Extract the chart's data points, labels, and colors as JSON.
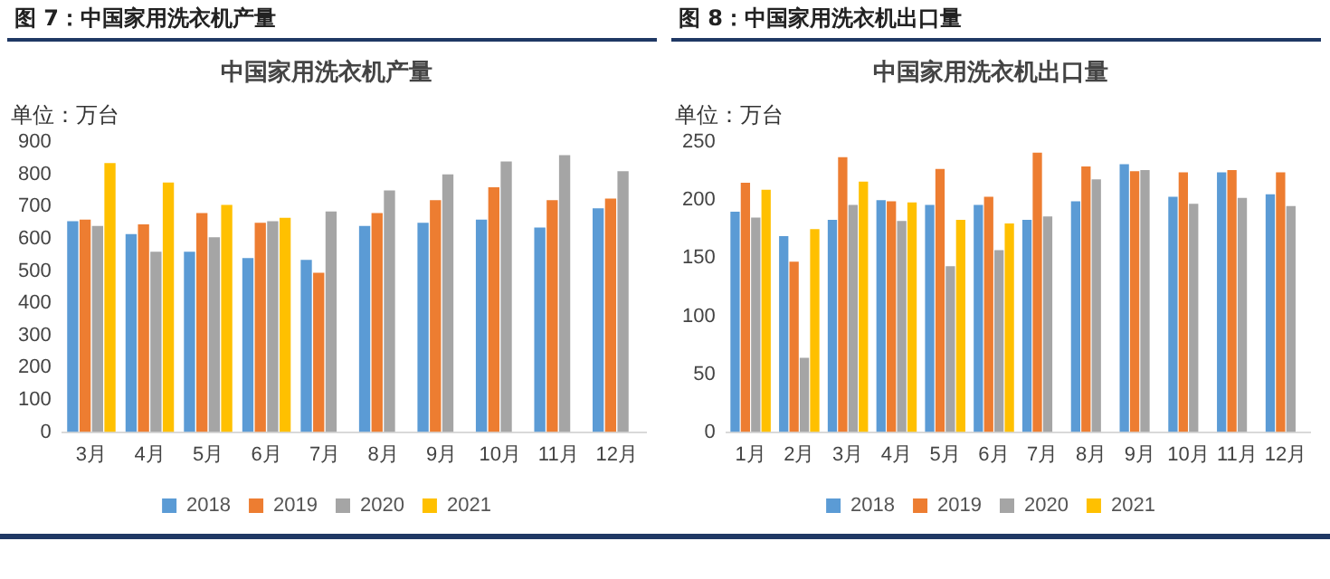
{
  "chart_data": [
    {
      "type": "bar",
      "title": "图 7：中国家用洗衣机产量",
      "subtitle": "中国家用洗衣机产量",
      "ylabel": "单位：万台",
      "categories": [
        "3月",
        "4月",
        "5月",
        "6月",
        "7月",
        "8月",
        "9月",
        "10月",
        "11月",
        "12月"
      ],
      "series": [
        {
          "name": "2018",
          "color": "#5b9bd5",
          "values": [
            655,
            615,
            560,
            540,
            535,
            640,
            650,
            660,
            635,
            695
          ]
        },
        {
          "name": "2019",
          "color": "#ed7d31",
          "values": [
            660,
            645,
            680,
            650,
            495,
            680,
            720,
            760,
            720,
            725
          ]
        },
        {
          "name": "2020",
          "color": "#a5a5a5",
          "values": [
            640,
            560,
            605,
            655,
            685,
            750,
            800,
            840,
            860,
            810
          ]
        },
        {
          "name": "2021",
          "color": "#ffc000",
          "values": [
            835,
            775,
            705,
            665,
            null,
            null,
            null,
            null,
            null,
            null
          ]
        }
      ],
      "ylim": [
        0,
        900
      ],
      "yticks": [
        0,
        100,
        200,
        300,
        400,
        500,
        600,
        700,
        800,
        900
      ],
      "grid": false,
      "legend": "bottom"
    },
    {
      "type": "bar",
      "title": "图 8：中国家用洗衣机出口量",
      "subtitle": "中国家用洗衣机出口量",
      "ylabel": "单位：万台",
      "categories": [
        "1月",
        "2月",
        "3月",
        "4月",
        "5月",
        "6月",
        "7月",
        "8月",
        "9月",
        "10月",
        "11月",
        "12月"
      ],
      "series": [
        {
          "name": "2018",
          "color": "#5b9bd5",
          "values": [
            190,
            169,
            183,
            200,
            196,
            196,
            183,
            199,
            231,
            203,
            224,
            205
          ]
        },
        {
          "name": "2019",
          "color": "#ed7d31",
          "values": [
            215,
            147,
            237,
            199,
            227,
            203,
            241,
            229,
            225,
            224,
            226,
            224
          ]
        },
        {
          "name": "2020",
          "color": "#a5a5a5",
          "values": [
            185,
            64,
            196,
            182,
            143,
            157,
            186,
            218,
            226,
            197,
            202,
            195
          ]
        },
        {
          "name": "2021",
          "color": "#ffc000",
          "values": [
            209,
            175,
            216,
            198,
            183,
            180,
            null,
            null,
            null,
            null,
            null,
            null
          ]
        }
      ],
      "ylim": [
        0,
        250
      ],
      "yticks": [
        0,
        50,
        100,
        150,
        200,
        250
      ],
      "grid": false,
      "legend": "bottom"
    }
  ]
}
